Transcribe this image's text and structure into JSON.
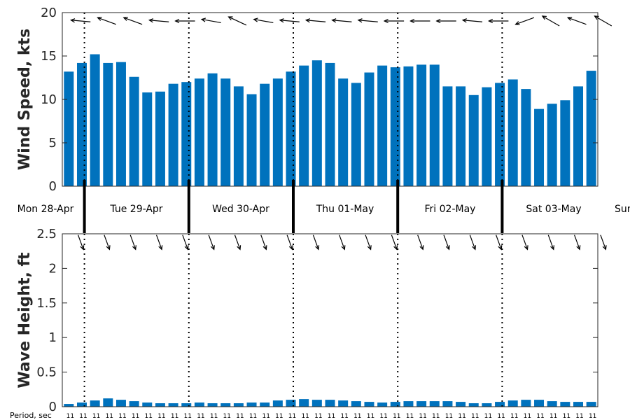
{
  "colors": {
    "bar": "#0072bd",
    "axis": "#262626",
    "arrow": "#000000"
  },
  "chart_data": [
    {
      "type": "bar",
      "ylabel": "Wind Speed, kts",
      "ylim": [
        0,
        20
      ],
      "yticks": [
        "0",
        "5",
        "10",
        "15",
        "20"
      ],
      "ytick_values": [
        0,
        5,
        10,
        15,
        20
      ],
      "values": [
        13.2,
        14.2,
        15.2,
        14.2,
        14.3,
        12.6,
        10.8,
        10.9,
        11.8,
        12.0,
        12.4,
        13.0,
        12.4,
        11.5,
        10.6,
        11.8,
        12.4,
        13.2,
        13.9,
        14.5,
        14.2,
        12.4,
        11.9,
        13.1,
        13.9,
        13.7,
        13.8,
        14.0,
        14.0,
        11.5,
        11.5,
        10.5,
        11.4,
        11.9,
        12.3,
        11.2,
        8.9,
        9.5,
        9.9,
        11.5,
        13.3
      ],
      "direction_arrows_deg": [
        275,
        280,
        290,
        300,
        290,
        280,
        275,
        270,
        270,
        270,
        280,
        290,
        295,
        290,
        280,
        275,
        275,
        275,
        275,
        275,
        275,
        275,
        275,
        270,
        270,
        270,
        270,
        270,
        270,
        275,
        275,
        270,
        270,
        255,
        250,
        290,
        300,
        300,
        290,
        300,
        300
      ]
    },
    {
      "type": "bar",
      "ylabel": "Wave Height, ft",
      "ylim": [
        0,
        2.5
      ],
      "yticks": [
        "0",
        "0.5",
        "1",
        "1.5",
        "2",
        "2.5"
      ],
      "ytick_values": [
        0,
        0.5,
        1,
        1.5,
        2,
        2.5
      ],
      "values": [
        0.04,
        0.06,
        0.09,
        0.12,
        0.1,
        0.08,
        0.06,
        0.05,
        0.05,
        0.05,
        0.06,
        0.05,
        0.05,
        0.05,
        0.06,
        0.06,
        0.09,
        0.1,
        0.11,
        0.1,
        0.1,
        0.09,
        0.08,
        0.07,
        0.06,
        0.07,
        0.08,
        0.08,
        0.08,
        0.08,
        0.07,
        0.05,
        0.05,
        0.07,
        0.09,
        0.1,
        0.1,
        0.08,
        0.07,
        0.07,
        0.07
      ],
      "direction_arrows_deg": [
        160,
        160,
        160,
        160,
        160,
        160,
        160,
        160,
        160,
        160,
        160,
        160,
        160,
        160,
        160,
        160,
        160,
        160,
        160,
        160,
        160,
        160,
        160,
        160,
        160,
        160,
        160,
        160,
        160,
        160,
        160,
        160,
        160,
        160,
        160,
        160,
        160,
        160,
        160,
        160,
        160
      ]
    }
  ],
  "days": [
    "Mon 28-Apr",
    "Tue 29-Apr",
    "Wed 30-Apr",
    "Thu 01-May",
    "Fri 02-May",
    "Sat 03-May",
    "Sun"
  ],
  "period": {
    "title": "Period, sec",
    "values": [
      "11",
      "11",
      "11",
      "11",
      "11",
      "11",
      "11",
      "11",
      "11",
      "11",
      "11",
      "11",
      "11",
      "11",
      "11",
      "11",
      "11",
      "11",
      "11",
      "11",
      "11",
      "11",
      "11",
      "11",
      "11",
      "11",
      "11",
      "11",
      "11",
      "11",
      "11",
      "11",
      "11",
      "11",
      "11",
      "11",
      "11",
      "11",
      "11",
      "11",
      "11"
    ]
  }
}
